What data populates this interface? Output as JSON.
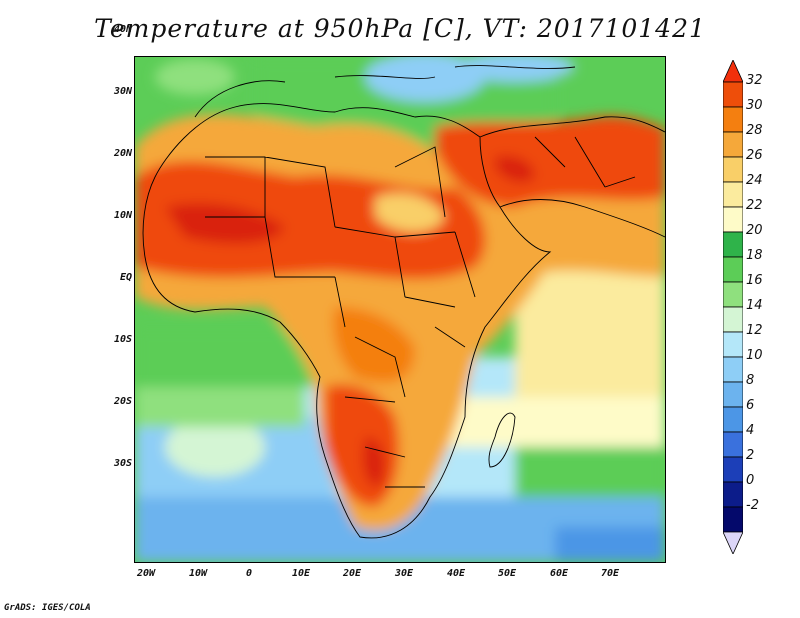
{
  "title": "Temperature at 950hPa [C], VT: 2017101421",
  "credit": "GrADS: IGES/COLA",
  "lat_labels": [
    "40N",
    "30N",
    "20N",
    "10N",
    "EQ",
    "10S",
    "20S",
    "30S"
  ],
  "lon_labels": [
    "20W",
    "10W",
    "0",
    "10E",
    "20E",
    "30E",
    "40E",
    "50E",
    "60E",
    "70E"
  ],
  "colorbar": {
    "levels": [
      "32",
      "30",
      "28",
      "26",
      "24",
      "22",
      "20",
      "18",
      "16",
      "14",
      "12",
      "10",
      "8",
      "6",
      "4",
      "2",
      "0",
      "-2"
    ],
    "colors": [
      "#f2300c",
      "#ee4e0a",
      "#f47f10",
      "#f5a83a",
      "#f9cf68",
      "#fbeb9e",
      "#fefbc8",
      "#2fb34a",
      "#5ccd57",
      "#8fe07e",
      "#d4f5d4",
      "#b4e7f9",
      "#8ecef6",
      "#6cb3ee",
      "#4c96e6",
      "#3a71dd",
      "#1c3fb8",
      "#0c1c8a",
      "#04096b",
      "#dcd6f8"
    ]
  },
  "palette": {
    "extreme_hot": "#d9200e",
    "very_hot": "#ef4a0b",
    "hot": "#f47f10",
    "warm": "#f5a83a",
    "mild": "#f9cf68",
    "pale": "#fbeb9e",
    "cool_green": "#2fb34a",
    "light_green": "#8fe07e",
    "cyan": "#d4f5d4",
    "sky": "#b4e7f9",
    "blue": "#8ecef6",
    "deep_blue": "#4c96e6",
    "border": "#000000"
  }
}
